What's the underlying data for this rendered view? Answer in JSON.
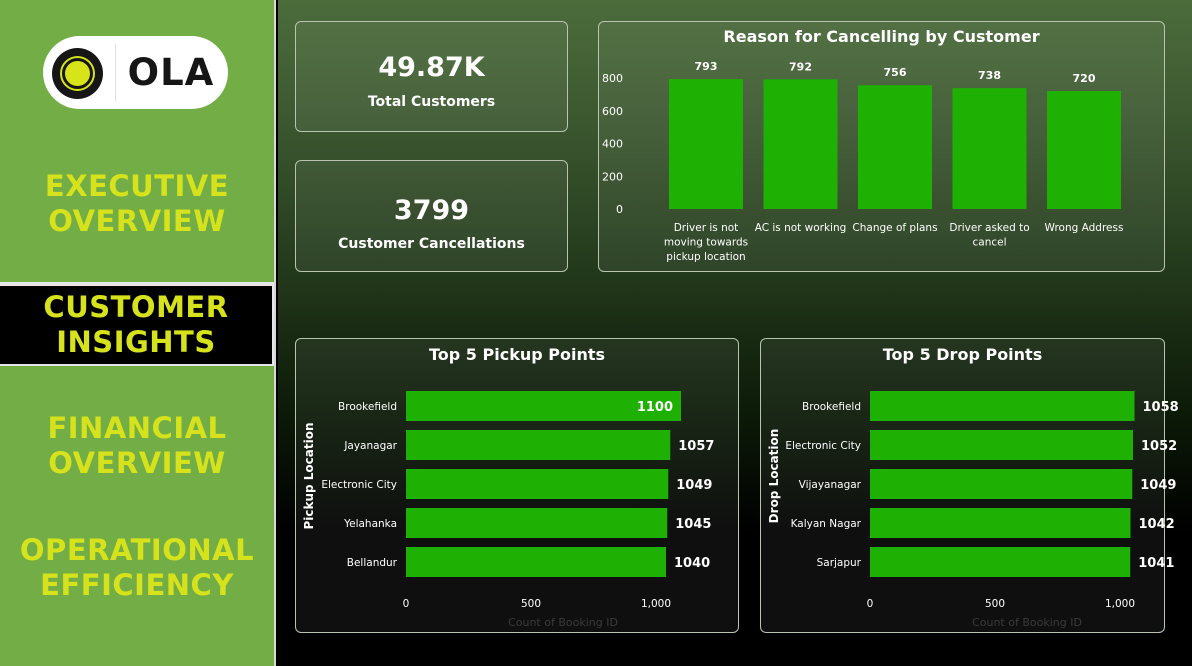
{
  "app": {
    "logo_text": "OLA"
  },
  "nav": {
    "executive": "EXECUTIVE\nOVERVIEW",
    "customer": "CUSTOMER\nINSIGHTS",
    "financial": "FINANCIAL\nOVERVIEW",
    "operational": "OPERATIONAL\nEFFICIENCY",
    "active": "customer"
  },
  "kpis": {
    "total_customers": {
      "value": "49.87K",
      "label": "Total Customers"
    },
    "customer_cancellations": {
      "value": "3799",
      "label": "Customer Cancellations"
    }
  },
  "colors": {
    "bar": "#1fb004",
    "accent": "#d6e21c",
    "sidebar": "#72ad45"
  },
  "chart_data": [
    {
      "type": "bar",
      "title": "Reason for Cancelling by Customer",
      "categories": [
        "Driver is not moving towards pickup location",
        "AC is not working",
        "Change of plans",
        "Driver asked to cancel",
        "Wrong Address"
      ],
      "category_lines": [
        [
          "Driver is not",
          "moving towards",
          "pickup location"
        ],
        [
          "AC is not working"
        ],
        [
          "Change of plans"
        ],
        [
          "Driver asked to",
          "cancel"
        ],
        [
          "Wrong Address"
        ]
      ],
      "values": [
        793,
        792,
        756,
        738,
        720
      ],
      "ylim": [
        0,
        800
      ],
      "yticks": [
        "0",
        "200",
        "400",
        "600",
        "800"
      ],
      "grid": false,
      "xlabel": "",
      "ylabel": ""
    },
    {
      "type": "bar",
      "orientation": "horizontal",
      "title": "Top 5 Pickup Points",
      "categories": [
        "Brookefield",
        "Jayanagar",
        "Electronic City",
        "Yelahanka",
        "Bellandur"
      ],
      "values": [
        1100,
        1057,
        1049,
        1045,
        1040
      ],
      "xlim": [
        0,
        1100
      ],
      "xticks": [
        "0",
        "500",
        "1,000"
      ],
      "xlabel": "Count of Booking ID",
      "ylabel": "Pickup Location"
    },
    {
      "type": "bar",
      "orientation": "horizontal",
      "title": "Top 5 Drop Points",
      "categories": [
        "Brookefield",
        "Electronic City",
        "Vijayanagar",
        "Kalyan Nagar",
        "Sarjapur"
      ],
      "values": [
        1058,
        1052,
        1049,
        1042,
        1041
      ],
      "xlim": [
        0,
        1100
      ],
      "xticks": [
        "0",
        "500",
        "1,000"
      ],
      "xlabel": "Count of Booking ID",
      "ylabel": "Drop Location"
    }
  ]
}
